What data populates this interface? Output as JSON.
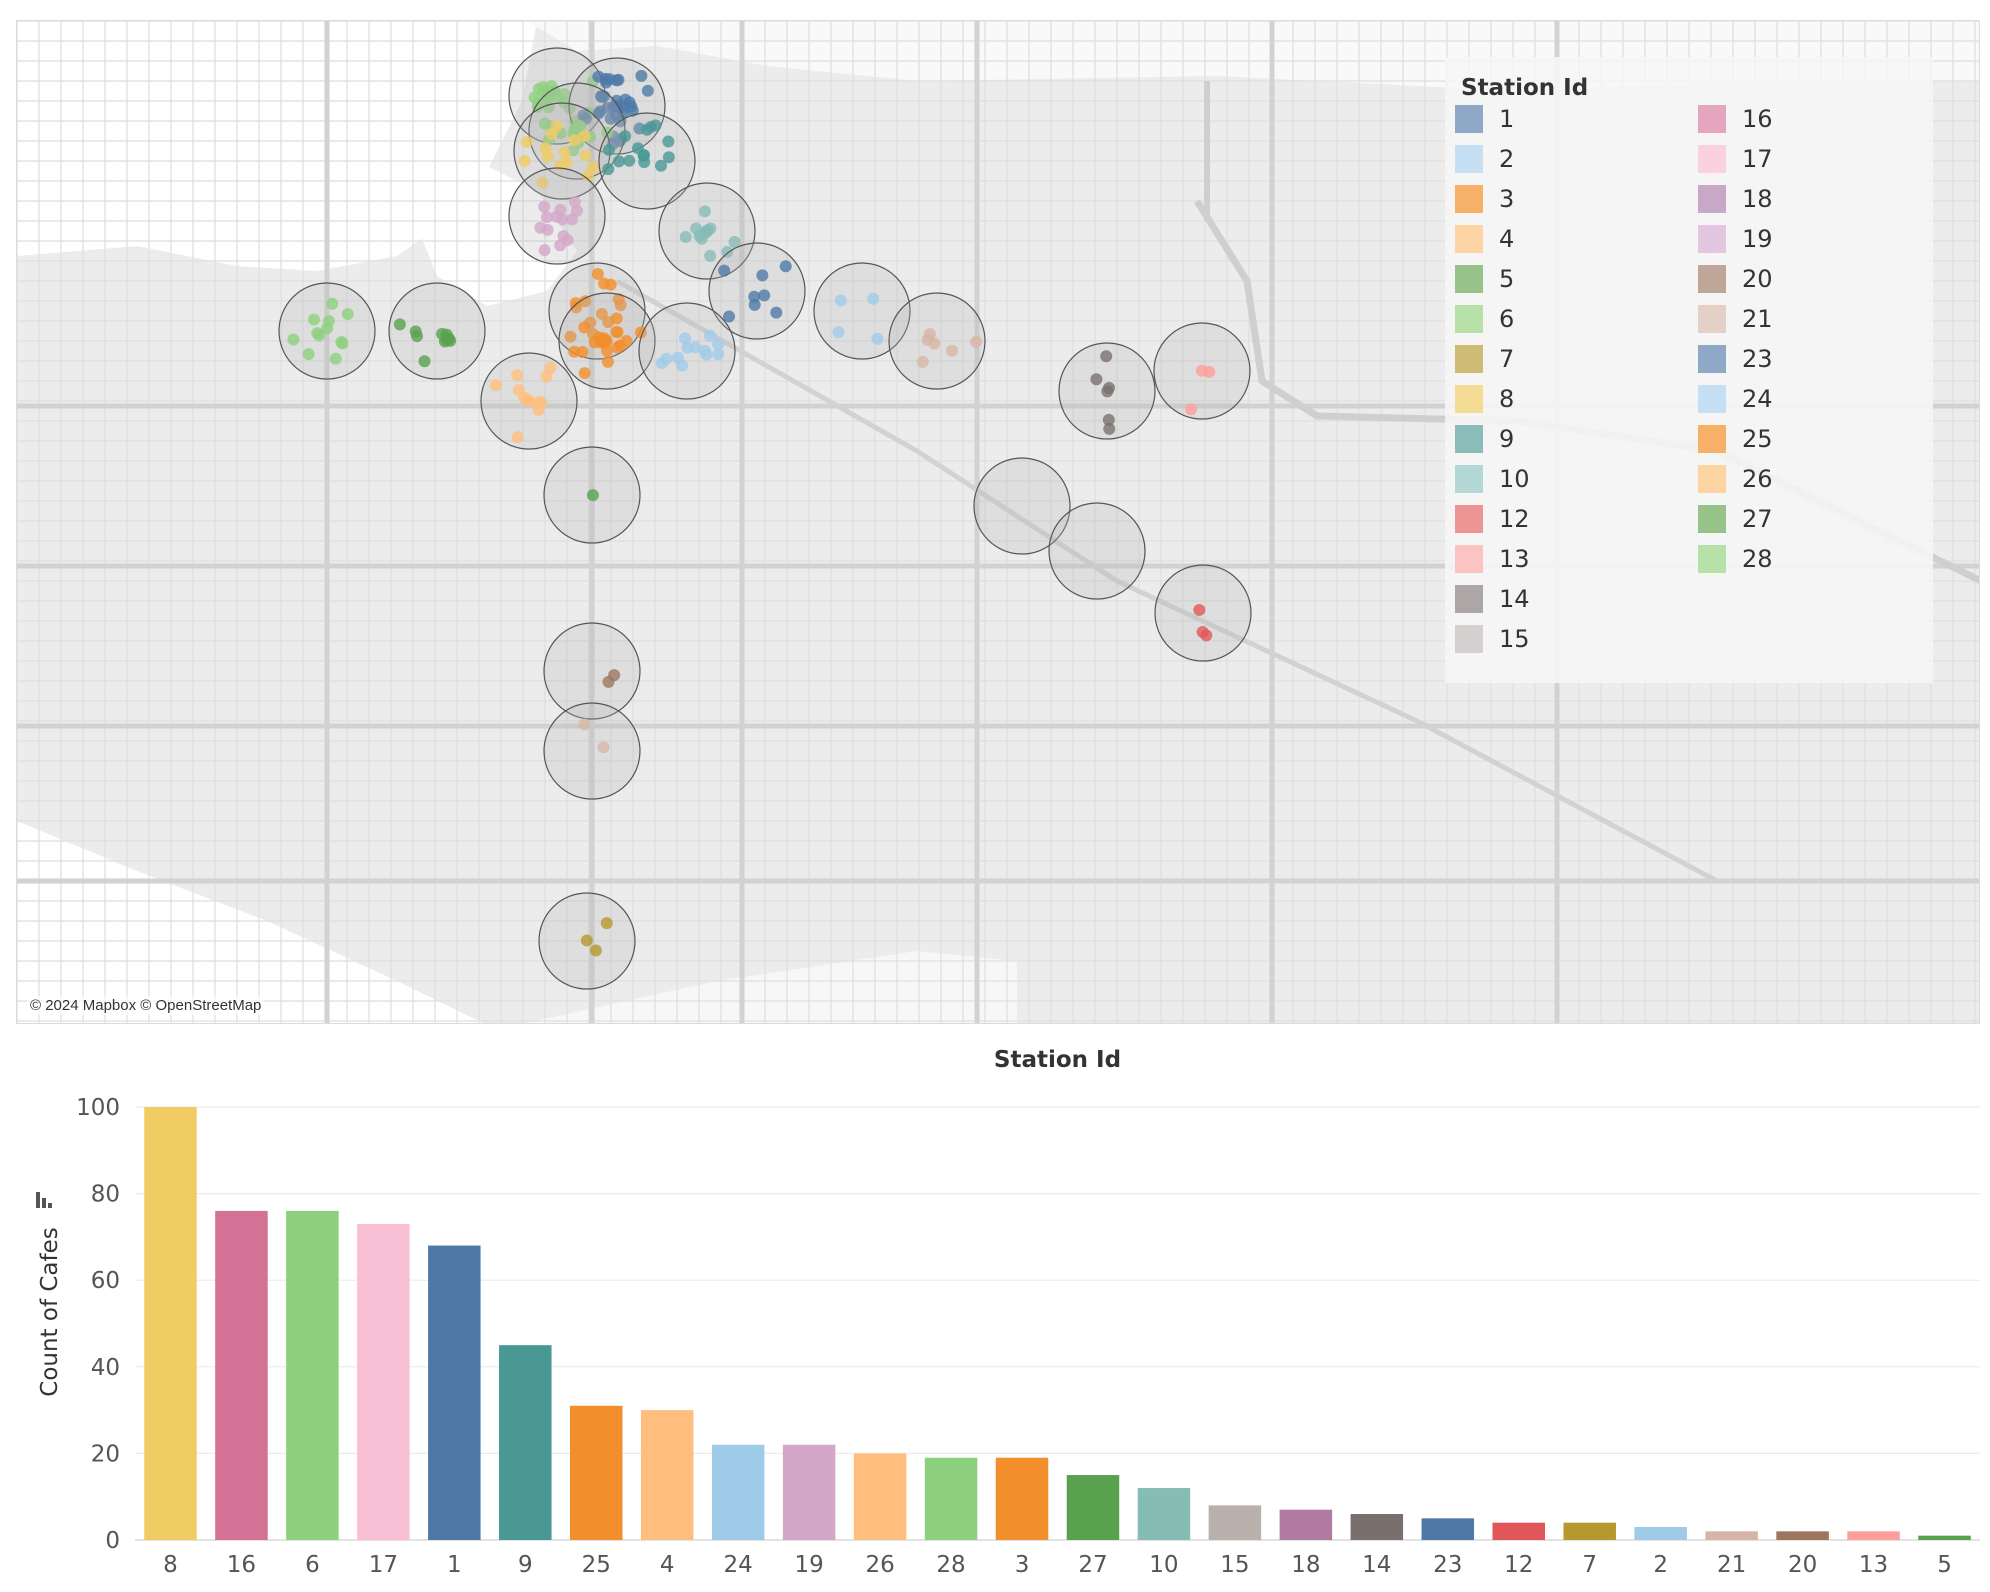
{
  "map": {
    "legend_title": "Station Id",
    "attribution": "© 2024 Mapbox © OpenStreetMap",
    "legend": [
      {
        "id": "1",
        "color": "#8fa8c8"
      },
      {
        "id": "2",
        "color": "#c6dff2"
      },
      {
        "id": "3",
        "color": "#f7b068"
      },
      {
        "id": "4",
        "color": "#fdd4a4"
      },
      {
        "id": "5",
        "color": "#97c28a"
      },
      {
        "id": "6",
        "color": "#b7e1a8"
      },
      {
        "id": "7",
        "color": "#cfbc74"
      },
      {
        "id": "8",
        "color": "#f5dc94"
      },
      {
        "id": "9",
        "color": "#8abdb9"
      },
      {
        "id": "10",
        "color": "#b3d8d5"
      },
      {
        "id": "12",
        "color": "#ed9494"
      },
      {
        "id": "13",
        "color": "#fbc3c1"
      },
      {
        "id": "14",
        "color": "#aca6a6"
      },
      {
        "id": "15",
        "color": "#d4d0cf"
      },
      {
        "id": "16",
        "color": "#e4a6bf"
      },
      {
        "id": "17",
        "color": "#fbd0e0"
      },
      {
        "id": "18",
        "color": "#c9a7c7"
      },
      {
        "id": "19",
        "color": "#e3c6e0"
      },
      {
        "id": "20",
        "color": "#c0a699"
      },
      {
        "id": "21",
        "color": "#e5d0c8"
      },
      {
        "id": "23",
        "color": "#8fa8c8"
      },
      {
        "id": "24",
        "color": "#c6dff2"
      },
      {
        "id": "25",
        "color": "#f7b068"
      },
      {
        "id": "26",
        "color": "#fdd4a4"
      },
      {
        "id": "27",
        "color": "#97c28a"
      },
      {
        "id": "28",
        "color": "#b7e1a8"
      }
    ]
  },
  "chart_data": {
    "type": "bar",
    "title": "Station Id",
    "xlabel": "",
    "ylabel": "Count of Cafes",
    "ylim": [
      0,
      100
    ],
    "yticks": [
      0,
      20,
      40,
      60,
      80,
      100
    ],
    "grid": true,
    "categories": [
      "8",
      "16",
      "6",
      "17",
      "1",
      "9",
      "25",
      "4",
      "24",
      "19",
      "26",
      "28",
      "3",
      "27",
      "10",
      "15",
      "18",
      "14",
      "23",
      "12",
      "7",
      "2",
      "21",
      "20",
      "13",
      "5"
    ],
    "values": [
      100,
      76,
      76,
      73,
      68,
      45,
      31,
      30,
      22,
      22,
      20,
      19,
      19,
      15,
      12,
      8,
      7,
      6,
      5,
      4,
      4,
      3,
      2,
      2,
      2,
      1
    ],
    "colors": [
      "#f0cc62",
      "#d37295",
      "#8dd17e",
      "#f9bfd4",
      "#4e79a7",
      "#499894",
      "#f28e2b",
      "#ffbe7d",
      "#a0cbe8",
      "#d4a6c8",
      "#ffbe7d",
      "#8dd17e",
      "#f28e2b",
      "#59a14f",
      "#86bcb6",
      "#bab0ac",
      "#b07aa1",
      "#79706e",
      "#4e79a7",
      "#e15759",
      "#b6992d",
      "#a0cbe8",
      "#d7b5a6",
      "#9d7660",
      "#ff9d9a",
      "#59a14f"
    ]
  }
}
